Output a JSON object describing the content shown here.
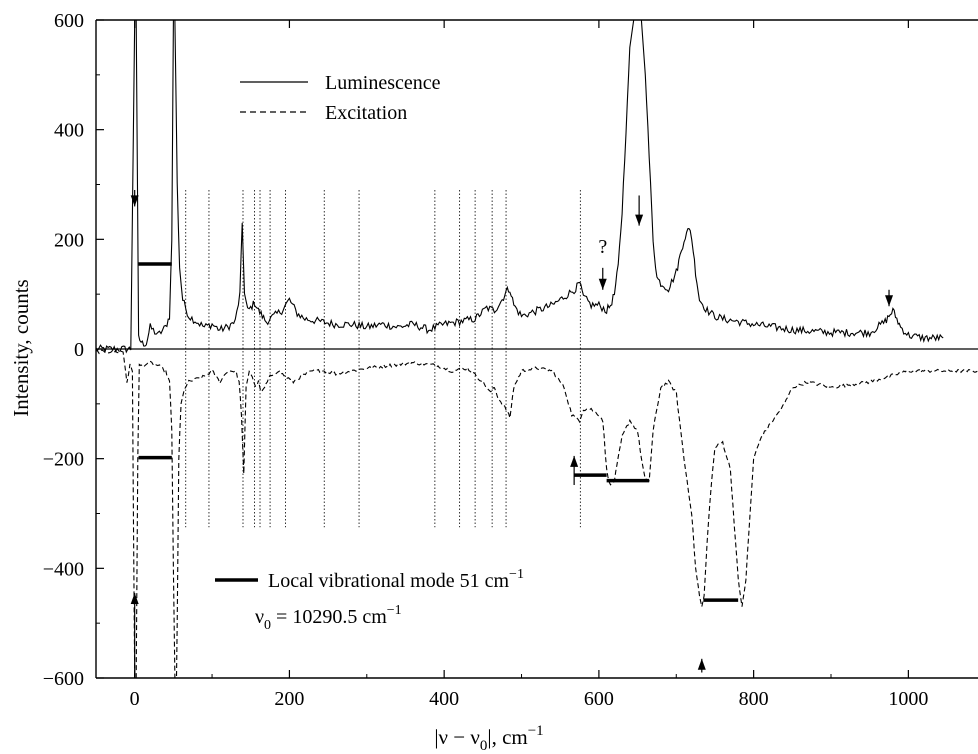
{
  "chart_data": {
    "type": "line",
    "xlabel": {
      "pre": "|ν − ν",
      "sub": "0",
      "post": "|, cm",
      "sup": "−1"
    },
    "ylabel": "Intensity, counts",
    "xlim": [
      -50,
      1090
    ],
    "ylim": [
      -600,
      600
    ],
    "xticks": [
      0,
      200,
      400,
      600,
      800,
      1000
    ],
    "yticks": [
      -600,
      -400,
      -200,
      0,
      200,
      400,
      600
    ],
    "xtick_labels": [
      "0",
      "200",
      "400",
      "600",
      "800",
      "1000"
    ],
    "ytick_labels": [
      "−600",
      "−400",
      "−200",
      "0",
      "200",
      "400",
      "600"
    ],
    "grid": false,
    "series": [
      {
        "name": "Luminescence",
        "style": "solid",
        "x": [
          -50,
          -5,
          0,
          2,
          5,
          10,
          15,
          20,
          30,
          40,
          45,
          48,
          50,
          52,
          55,
          58,
          62,
          70,
          80,
          90,
          100,
          110,
          120,
          130,
          136,
          139,
          142,
          146,
          150,
          155,
          160,
          165,
          170,
          180,
          190,
          200,
          210,
          220,
          240,
          260,
          280,
          300,
          320,
          340,
          360,
          380,
          400,
          420,
          440,
          455,
          465,
          470,
          475,
          480,
          485,
          490,
          500,
          520,
          540,
          560,
          570,
          575,
          580,
          590,
          600,
          610,
          615,
          620,
          625,
          630,
          635,
          640,
          645,
          650,
          655,
          660,
          665,
          670,
          675,
          680,
          690,
          700,
          705,
          710,
          715,
          718,
          722,
          725,
          730,
          740,
          750,
          760,
          780,
          800,
          850,
          900,
          950,
          960,
          970,
          975,
          980,
          985,
          990,
          1000,
          1020,
          1045
        ],
        "values": [
          0,
          0,
          600,
          600,
          20,
          10,
          10,
          40,
          25,
          40,
          60,
          200,
          600,
          600,
          300,
          150,
          90,
          60,
          50,
          40,
          45,
          35,
          40,
          50,
          100,
          230,
          100,
          70,
          75,
          85,
          70,
          60,
          50,
          60,
          70,
          90,
          65,
          55,
          50,
          45,
          45,
          40,
          45,
          40,
          45,
          35,
          45,
          50,
          55,
          75,
          70,
          80,
          90,
          105,
          110,
          80,
          60,
          70,
          80,
          100,
          110,
          120,
          95,
          80,
          80,
          70,
          80,
          100,
          150,
          250,
          400,
          550,
          600,
          600,
          600,
          500,
          350,
          200,
          130,
          120,
          110,
          140,
          170,
          200,
          215,
          220,
          180,
          140,
          90,
          70,
          60,
          55,
          50,
          45,
          35,
          30,
          30,
          40,
          50,
          60,
          70,
          55,
          40,
          25,
          20,
          20
        ]
      },
      {
        "name": "Excitation",
        "style": "dashed",
        "x": [
          -50,
          -15,
          -10,
          -6,
          -3,
          0,
          2,
          4,
          6,
          10,
          20,
          30,
          40,
          45,
          48,
          50,
          52,
          54,
          55,
          57,
          60,
          65,
          70,
          80,
          90,
          100,
          110,
          120,
          130,
          135,
          138,
          141,
          144,
          148,
          152,
          156,
          160,
          164,
          168,
          175,
          185,
          195,
          205,
          215,
          230,
          245,
          260,
          280,
          300,
          330,
          360,
          390,
          410,
          430,
          450,
          460,
          465,
          470,
          475,
          480,
          485,
          490,
          500,
          520,
          540,
          555,
          565,
          570,
          575,
          580,
          590,
          600,
          605,
          610,
          615,
          620,
          625,
          630,
          640,
          650,
          655,
          660,
          665,
          670,
          680,
          690,
          700,
          710,
          720,
          725,
          730,
          733,
          736,
          740,
          745,
          750,
          760,
          770,
          775,
          780,
          785,
          790,
          800,
          810,
          820,
          830,
          840,
          850,
          870,
          900,
          950,
          1000,
          1050,
          1090
        ],
        "values": [
          -5,
          -5,
          -60,
          -30,
          -40,
          -600,
          -600,
          -200,
          -30,
          -30,
          -25,
          -30,
          -40,
          -60,
          -150,
          -400,
          -600,
          -600,
          -500,
          -200,
          -100,
          -70,
          -60,
          -55,
          -50,
          -40,
          -60,
          -40,
          -40,
          -60,
          -120,
          -230,
          -70,
          -40,
          -50,
          -70,
          -60,
          -80,
          -70,
          -50,
          -40,
          -50,
          -60,
          -50,
          -40,
          -40,
          -45,
          -40,
          -35,
          -30,
          -25,
          -30,
          -40,
          -35,
          -60,
          -80,
          -70,
          -90,
          -100,
          -110,
          -125,
          -70,
          -40,
          -35,
          -40,
          -70,
          -120,
          -125,
          -130,
          -110,
          -110,
          -120,
          -130,
          -220,
          -250,
          -240,
          -200,
          -160,
          -130,
          -150,
          -200,
          -240,
          -240,
          -150,
          -70,
          -60,
          -80,
          -200,
          -300,
          -400,
          -450,
          -470,
          -450,
          -350,
          -250,
          -180,
          -170,
          -220,
          -320,
          -420,
          -470,
          -420,
          -200,
          -160,
          -140,
          -120,
          -100,
          -70,
          -60,
          -70,
          -60,
          -40,
          -40,
          -40
        ]
      }
    ],
    "vertical_lines": [
      66,
      96,
      140,
      155,
      162,
      175,
      195,
      245,
      290,
      388,
      420,
      440,
      462,
      480,
      576
    ],
    "vertical_lines_range": [
      -325,
      290
    ],
    "markers_h": [
      {
        "x1": 5,
        "x2": 48,
        "y": 155
      },
      {
        "x1": 5,
        "x2": 48,
        "y": -198
      },
      {
        "x1": 568,
        "x2": 610,
        "y": -230
      },
      {
        "x1": 610,
        "x2": 665,
        "y": -240
      },
      {
        "x1": 735,
        "x2": 780,
        "y": -458
      }
    ],
    "arrows_down": [
      {
        "x": 0,
        "y_from": 290,
        "y_to": 260
      },
      {
        "x": 605,
        "y_from": 148,
        "y_to": 108
      },
      {
        "x": 652,
        "y_from": 280,
        "y_to": 225
      },
      {
        "x": 975,
        "y_from": 108,
        "y_to": 78
      }
    ],
    "arrows_up": [
      {
        "x": 0,
        "y_from": -600,
        "y_to": -445
      },
      {
        "x": 568,
        "y_from": -248,
        "y_to": -195
      },
      {
        "x": 733,
        "y_from": -590,
        "y_to": -565
      }
    ],
    "annotations": [
      {
        "text": "?",
        "x": 605,
        "y": 175
      }
    ],
    "legend": {
      "placement": "top-left",
      "entries": [
        "Luminescence",
        "Excitation"
      ]
    },
    "note": {
      "line1": {
        "pre": "Local vibrational mode 51 cm",
        "sup": "−1"
      },
      "line2": {
        "nu": "ν",
        "sub": "0",
        "mid": " = 10290.5 cm",
        "sup": "−1"
      }
    }
  }
}
